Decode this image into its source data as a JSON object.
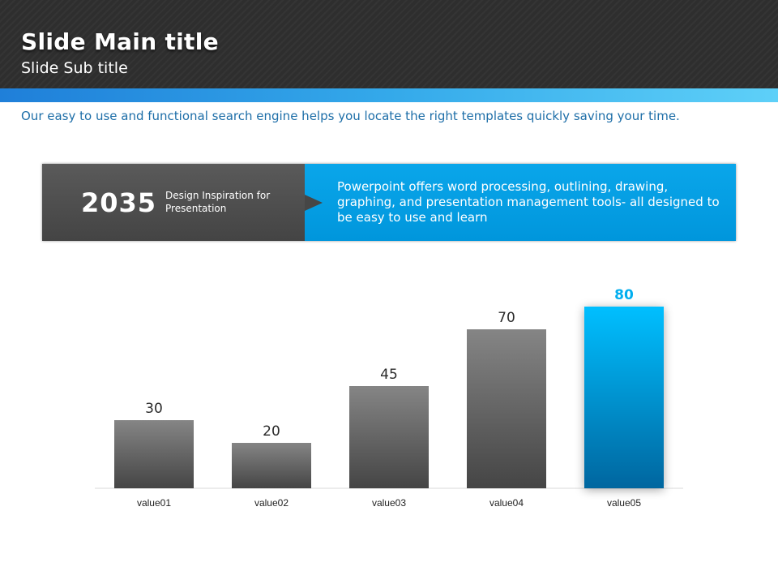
{
  "header": {
    "title": "Slide Main title",
    "subtitle": "Slide Sub title"
  },
  "intro": "Our easy to use and functional search engine helps you locate the right templates quickly saving your time.",
  "info": {
    "year": "2035",
    "caption": "Design Inspiration for Presentation",
    "description": "Powerpoint offers word processing, outlining, drawing, graphing, and presentation management tools- all designed to be easy to use and learn"
  },
  "colors": {
    "accent_blue": "#00aeef",
    "bar_gray": "#6e6e6e",
    "header_dark": "#2e2e2e",
    "intro_text": "#1d6ea8"
  },
  "chart_data": {
    "type": "bar",
    "categories": [
      "value01",
      "value02",
      "value03",
      "value04",
      "value05"
    ],
    "values": [
      30,
      20,
      45,
      70,
      80
    ],
    "highlight_index": 4,
    "ylim": [
      0,
      80
    ],
    "grid": false,
    "legend": "none",
    "title": "",
    "xlabel": "",
    "ylabel": ""
  }
}
